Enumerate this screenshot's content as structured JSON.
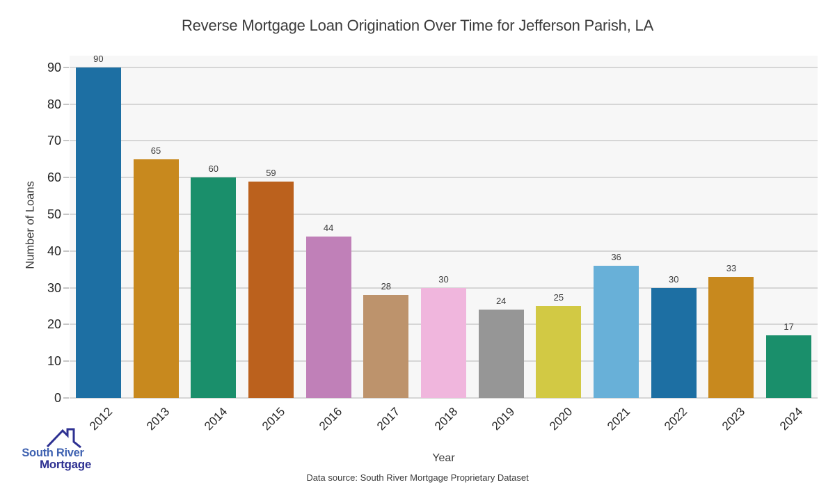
{
  "chart_data": {
    "type": "bar",
    "title": "Reverse Mortgage Loan Origination Over Time for Jefferson Parish, LA",
    "xlabel": "Year",
    "ylabel": "Number of Loans",
    "categories": [
      "2012",
      "2013",
      "2014",
      "2015",
      "2016",
      "2017",
      "2018",
      "2019",
      "2020",
      "2021",
      "2022",
      "2023",
      "2024"
    ],
    "values": [
      90,
      65,
      60,
      59,
      44,
      28,
      30,
      24,
      25,
      36,
      30,
      33,
      17
    ],
    "bar_colors": [
      "#1d6fa3",
      "#c8891e",
      "#1a8f6b",
      "#bb611d",
      "#c080b8",
      "#bd936c",
      "#f0b6dd",
      "#969696",
      "#d2c944",
      "#68b0d8",
      "#1d6fa3",
      "#c8891e",
      "#1a8f6b"
    ],
    "yticks": [
      0,
      10,
      20,
      30,
      40,
      50,
      60,
      70,
      80,
      90
    ],
    "ylim": [
      0,
      93.2
    ],
    "grid": "horizontal",
    "legend": "none",
    "value_labels_shown": true
  },
  "source_note": "Data source: South River Mortgage Proprietary Dataset",
  "logo": {
    "line1": "South River",
    "line2": "Mortgage",
    "line1_color": "#3f62b1",
    "line2_color": "#2e3192",
    "icon_color": "#2e3192"
  },
  "colors": {
    "plot_background": "#f7f7f7",
    "gridline": "#d6d6d6",
    "text": "#3b3b3b"
  }
}
